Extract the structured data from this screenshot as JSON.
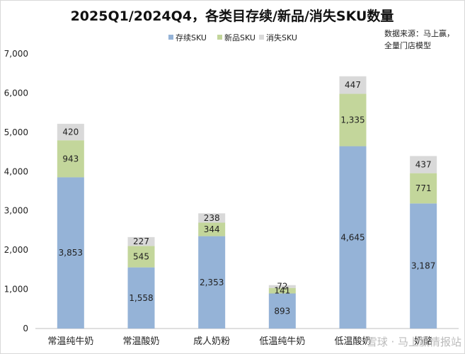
{
  "chart_data": {
    "type": "bar",
    "stacked": true,
    "title": "2025Q1/2024Q4，各类目存续/新品/消失SKU数量",
    "source_note": [
      "数据来源：马上赢，",
      "全量门店模型"
    ],
    "legend_position": "top",
    "categories": [
      "常温纯牛奶",
      "常温酸奶",
      "成人奶粉",
      "低温纯牛奶",
      "低温酸奶",
      "奶酪"
    ],
    "series": [
      {
        "name": "存续SKU",
        "color": "#95b3d7",
        "values": [
          3853,
          1558,
          2353,
          893,
          4645,
          3187
        ]
      },
      {
        "name": "新品SKU",
        "color": "#c3d69b",
        "values": [
          943,
          545,
          344,
          141,
          1335,
          771
        ]
      },
      {
        "name": "消失SKU",
        "color": "#d9d9d9",
        "values": [
          420,
          227,
          238,
          72,
          447,
          437
        ]
      }
    ],
    "yticks": [
      "0",
      "1,000",
      "2,000",
      "3,000",
      "4,000",
      "5,000",
      "6,000",
      "7,000"
    ],
    "data_labels": [
      [
        "3,853",
        "1,558",
        "2,353",
        "893",
        "4,645",
        "3,187"
      ],
      [
        "943",
        "545",
        "344",
        "141",
        "1,335",
        "771"
      ],
      [
        "420",
        "227",
        "238",
        "72",
        "447",
        "437"
      ]
    ],
    "ylim": [
      0,
      7000
    ],
    "grid": false
  },
  "watermark": "雪球 · 马上赢情报站"
}
